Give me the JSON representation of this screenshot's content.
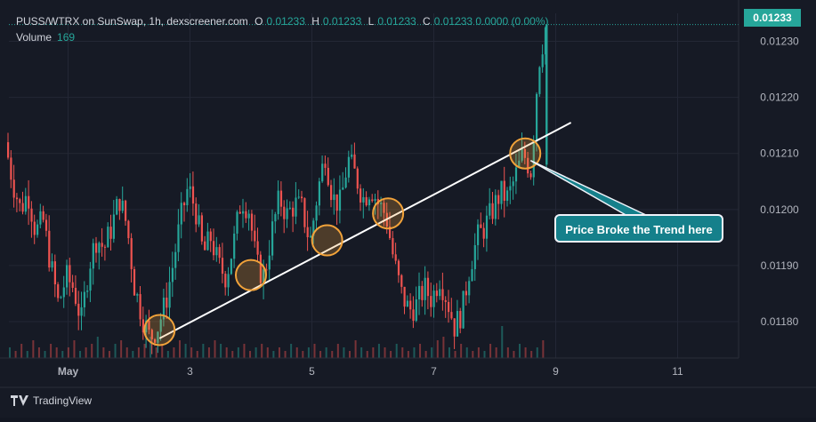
{
  "header": {
    "symbol_line": "PUSS/WTRX on SunSwap, 1h, dexscreener.com",
    "o_label": "O",
    "o_value": "0.01233",
    "h_label": "H",
    "h_value": "0.01233",
    "l_label": "L",
    "l_value": "0.01233",
    "c_label": "C",
    "c_value": "0.01233 0.0000 (0.00%)"
  },
  "volume": {
    "label": "Volume",
    "value": "169"
  },
  "last_price": "0.01233",
  "annotation": {
    "text": "Price Broke the Trend here"
  },
  "brand": {
    "name": "TradingView"
  },
  "colors": {
    "up": "#26a69a",
    "down": "#ef5350",
    "background": "#161a25",
    "grid": "#232735",
    "trendline": "#ffffff",
    "circle": "#f2a33a",
    "callout": "#15808b"
  },
  "chart_data": {
    "type": "candlestick",
    "title": "PUSS/WTRX on SunSwap, 1h, dexscreener.com",
    "x_ticks": [
      "May",
      "3",
      "5",
      "7",
      "9",
      "11"
    ],
    "y_ticks": [
      "0.01230",
      "0.01220",
      "0.01210",
      "0.01200",
      "0.01190",
      "0.01180"
    ],
    "ylim": [
      0.011735,
      0.01235
    ],
    "close_path": [
      {
        "t": "Apr 30 00:00",
        "v": 0.01212
      },
      {
        "t": "Apr 30 03:00",
        "v": 0.01205
      },
      {
        "t": "Apr 30 06:00",
        "v": 0.012
      },
      {
        "t": "Apr 30 09:00",
        "v": 0.01203
      },
      {
        "t": "Apr 30 12:00",
        "v": 0.01196
      },
      {
        "t": "Apr 30 15:00",
        "v": 0.01198
      },
      {
        "t": "Apr 30 18:00",
        "v": 0.0119
      },
      {
        "t": "Apr 30 21:00",
        "v": 0.01183
      },
      {
        "t": "May 1 00:00",
        "v": 0.01188
      },
      {
        "t": "May 1 03:00",
        "v": 0.01186
      },
      {
        "t": "May 1 06:00",
        "v": 0.0118
      },
      {
        "t": "May 1 09:00",
        "v": 0.0119
      },
      {
        "t": "May 1 12:00",
        "v": 0.01195
      },
      {
        "t": "May 1 15:00",
        "v": 0.01193
      },
      {
        "t": "May 1 18:00",
        "v": 0.01197
      },
      {
        "t": "May 1 21:00",
        "v": 0.01202
      },
      {
        "t": "May 2 00:00",
        "v": 0.01197
      },
      {
        "t": "May 2 03:00",
        "v": 0.01186
      },
      {
        "t": "May 2 06:00",
        "v": 0.01181
      },
      {
        "t": "May 2 09:00",
        "v": 0.01177
      },
      {
        "t": "May 2 12:00",
        "v": 0.01179
      },
      {
        "t": "May 2 15:00",
        "v": 0.01183
      },
      {
        "t": "May 2 18:00",
        "v": 0.0119
      },
      {
        "t": "May 2 21:00",
        "v": 0.01198
      },
      {
        "t": "May 3 00:00",
        "v": 0.01204
      },
      {
        "t": "May 3 03:00",
        "v": 0.012
      },
      {
        "t": "May 3 06:00",
        "v": 0.01192
      },
      {
        "t": "May 3 09:00",
        "v": 0.01195
      },
      {
        "t": "May 3 12:00",
        "v": 0.0119
      },
      {
        "t": "May 3 15:00",
        "v": 0.01188
      },
      {
        "t": "May 3 18:00",
        "v": 0.01194
      },
      {
        "t": "May 3 21:00",
        "v": 0.01202
      },
      {
        "t": "May 4 00:00",
        "v": 0.012
      },
      {
        "t": "May 4 03:00",
        "v": 0.0119
      },
      {
        "t": "May 4 06:00",
        "v": 0.01188
      },
      {
        "t": "May 4 09:00",
        "v": 0.01196
      },
      {
        "t": "May 4 12:00",
        "v": 0.01202
      },
      {
        "t": "May 4 15:00",
        "v": 0.01199
      },
      {
        "t": "May 4 18:00",
        "v": 0.01201
      },
      {
        "t": "May 4 21:00",
        "v": 0.012
      },
      {
        "t": "May 5 00:00",
        "v": 0.01194
      },
      {
        "t": "May 5 03:00",
        "v": 0.01203
      },
      {
        "t": "May 5 06:00",
        "v": 0.0121
      },
      {
        "t": "May 5 09:00",
        "v": 0.01202
      },
      {
        "t": "May 5 12:00",
        "v": 0.01201
      },
      {
        "t": "May 5 15:00",
        "v": 0.01209
      },
      {
        "t": "May 5 18:00",
        "v": 0.01206
      },
      {
        "t": "May 5 21:00",
        "v": 0.01202
      },
      {
        "t": "May 6 00:00",
        "v": 0.01204
      },
      {
        "t": "May 6 03:00",
        "v": 0.01201
      },
      {
        "t": "May 6 06:00",
        "v": 0.01199
      },
      {
        "t": "May 6 09:00",
        "v": 0.01191
      },
      {
        "t": "May 6 12:00",
        "v": 0.01185
      },
      {
        "t": "May 6 15:00",
        "v": 0.01182
      },
      {
        "t": "May 6 18:00",
        "v": 0.01183
      },
      {
        "t": "May 6 21:00",
        "v": 0.01186
      },
      {
        "t": "May 7 00:00",
        "v": 0.01184
      },
      {
        "t": "May 7 03:00",
        "v": 0.01188
      },
      {
        "t": "May 7 06:00",
        "v": 0.01184
      },
      {
        "t": "May 7 09:00",
        "v": 0.01179
      },
      {
        "t": "May 7 12:00",
        "v": 0.01182
      },
      {
        "t": "May 7 15:00",
        "v": 0.0119
      },
      {
        "t": "May 7 18:00",
        "v": 0.01195
      },
      {
        "t": "May 7 21:00",
        "v": 0.01197
      },
      {
        "t": "May 8 00:00",
        "v": 0.012
      },
      {
        "t": "May 8 03:00",
        "v": 0.01203
      },
      {
        "t": "May 8 06:00",
        "v": 0.01202
      },
      {
        "t": "May 8 09:00",
        "v": 0.01206
      },
      {
        "t": "May 8 12:00",
        "v": 0.0121
      },
      {
        "t": "May 8 15:00",
        "v": 0.01207
      },
      {
        "t": "May 8 18:00",
        "v": 0.01226
      },
      {
        "t": "May 8 21:00",
        "v": 0.01233
      }
    ],
    "volume_profile": [
      3,
      2,
      4,
      2,
      5,
      3,
      2,
      4,
      3,
      2,
      3,
      5,
      2,
      3,
      4,
      6,
      3,
      2,
      4,
      5,
      3,
      2,
      3,
      4,
      6,
      3,
      4,
      2,
      3,
      5,
      4,
      3,
      2,
      4,
      3,
      5,
      4,
      3,
      2,
      3,
      4,
      2,
      3,
      4,
      3,
      2,
      3,
      2,
      4,
      3,
      2,
      3,
      4,
      2,
      3,
      2,
      4,
      3,
      2,
      5,
      3,
      2,
      3,
      4,
      3,
      2,
      4,
      3,
      2,
      3,
      4,
      2,
      3,
      5,
      6,
      3,
      2,
      4,
      3,
      2,
      3,
      2,
      4,
      3,
      9,
      3,
      2,
      4,
      3,
      2,
      3,
      5
    ],
    "trendline": {
      "from": {
        "t": "May 2 12:00",
        "v": 0.01177
      },
      "to": {
        "t": "May 9 06:00",
        "v": 0.012155
      }
    },
    "circles": [
      {
        "t": "May 2 12:00",
        "v": 0.011785
      },
      {
        "t": "May 4 00:00",
        "v": 0.011883
      },
      {
        "t": "May 5 06:00",
        "v": 0.011945
      },
      {
        "t": "May 6 06:00",
        "v": 0.011993
      },
      {
        "t": "May 8 12:00",
        "v": 0.0121
      }
    ],
    "grid": true
  }
}
